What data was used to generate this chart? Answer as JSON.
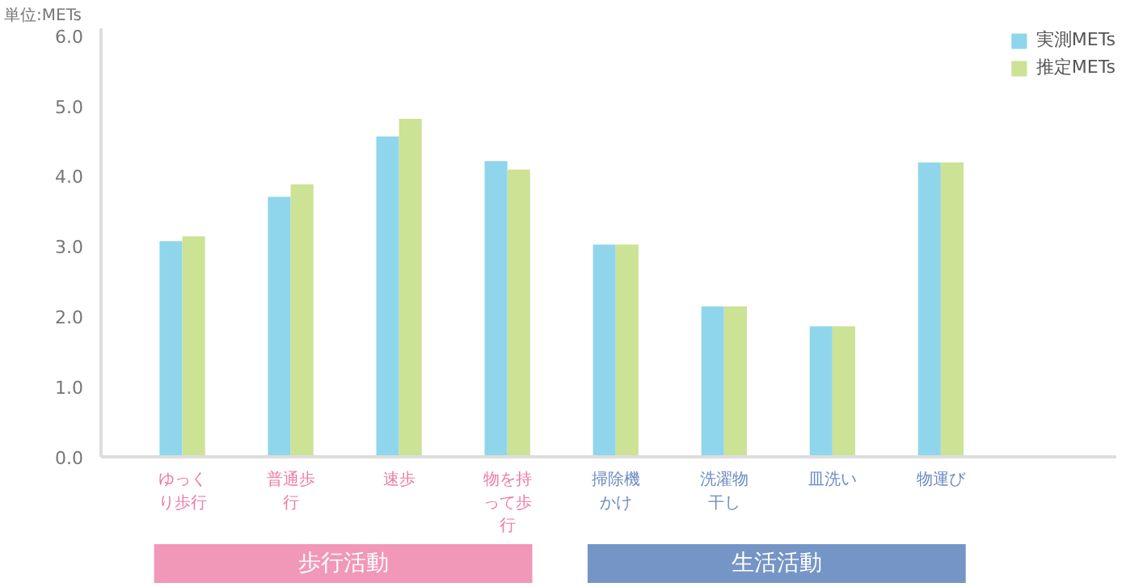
{
  "chart_data": {
    "type": "bar",
    "ylabel": "単位:METs",
    "categories": [
      "ゆっくり歩行",
      "普通歩行",
      "速歩",
      "物を持って歩行",
      "掃除機かけ",
      "洗濯物干し",
      "皿洗い",
      "物運び"
    ],
    "series": [
      {
        "name": "実測METs",
        "color": "#8fd6ec",
        "values": [
          3.07,
          3.7,
          4.56,
          4.21,
          3.02,
          2.14,
          1.86,
          4.19
        ]
      },
      {
        "name": "推定METs",
        "color": "#cce295",
        "values": [
          3.14,
          3.88,
          4.81,
          4.09,
          3.02,
          2.14,
          1.86,
          4.19
        ]
      }
    ],
    "ylim": [
      0,
      6.1
    ],
    "yticks": [
      {
        "value": 0,
        "label": "0.0"
      },
      {
        "value": 1,
        "label": "1.0"
      },
      {
        "value": 2,
        "label": "2.0"
      },
      {
        "value": 3,
        "label": "3.0"
      },
      {
        "value": 4,
        "label": "4.0"
      },
      {
        "value": 5,
        "label": "5.0"
      },
      {
        "value": 6,
        "label": "6.0"
      }
    ],
    "grid": false,
    "legend": "top right",
    "annotations": [
      "歩行活動",
      "生活活動"
    ]
  }
}
